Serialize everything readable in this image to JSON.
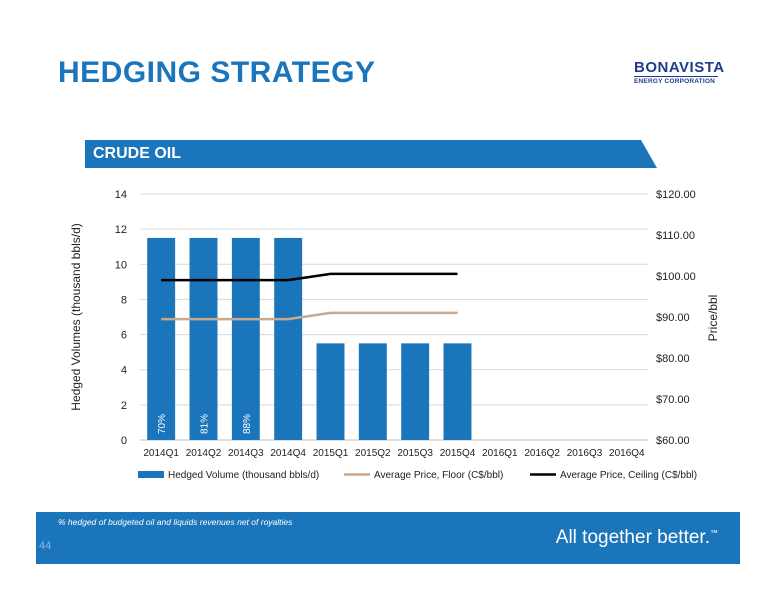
{
  "slide": {
    "title": "HEDGING STRATEGY",
    "section": "CRUDE OIL",
    "logo_main": "BONAVISTA",
    "logo_sub": "ENERGY CORPORATION",
    "footnote": "% hedged of budgeted oil and liquids revenues net of royalties",
    "tagline": "All together better.",
    "trademark": "™",
    "page_number": "44"
  },
  "colors": {
    "brand_blue": "#1b75bb",
    "bar": "#1b75bb",
    "floor": "#c8a98e",
    "ceiling": "#000000",
    "grid": "#d9d9d9"
  },
  "chart_data": {
    "type": "bar",
    "categories": [
      "2014Q1",
      "2014Q2",
      "2014Q3",
      "2014Q4",
      "2015Q1",
      "2015Q2",
      "2015Q3",
      "2015Q4",
      "2016Q1",
      "2016Q2",
      "2016Q3",
      "2016Q4"
    ],
    "series": [
      {
        "name": "Hedged Volume (thousand bbls/d)",
        "type": "bar",
        "axis": "left",
        "values": [
          11.5,
          11.5,
          11.5,
          11.5,
          5.5,
          5.5,
          5.5,
          5.5,
          null,
          null,
          null,
          null
        ]
      },
      {
        "name": "Average Price, Floor (C$/bbl)",
        "type": "line",
        "axis": "right",
        "values": [
          89.5,
          89.5,
          89.5,
          89.5,
          91,
          91,
          91,
          91,
          null,
          null,
          null,
          null
        ]
      },
      {
        "name": "Average Price, Ceiling (C$/bbl)",
        "type": "line",
        "axis": "right",
        "values": [
          99,
          99,
          99,
          99,
          100.5,
          100.5,
          100.5,
          100.5,
          null,
          null,
          null,
          null
        ]
      }
    ],
    "bar_labels": [
      "70%",
      "81%",
      "88%",
      "",
      "",
      "",
      "",
      "",
      "",
      "",
      "",
      ""
    ],
    "ylabel": "Hedged Volumes (thousand bbls/d)",
    "y2label": "Price/bbl",
    "ylim": [
      0,
      14
    ],
    "yticks": [
      0,
      2,
      4,
      6,
      8,
      10,
      12,
      14
    ],
    "y2lim": [
      60,
      120
    ],
    "y2ticks": [
      "$60.00",
      "$70.00",
      "$80.00",
      "$90.00",
      "$100.00",
      "$110.00",
      "$120.00"
    ],
    "grid": true,
    "legend_position": "bottom"
  }
}
